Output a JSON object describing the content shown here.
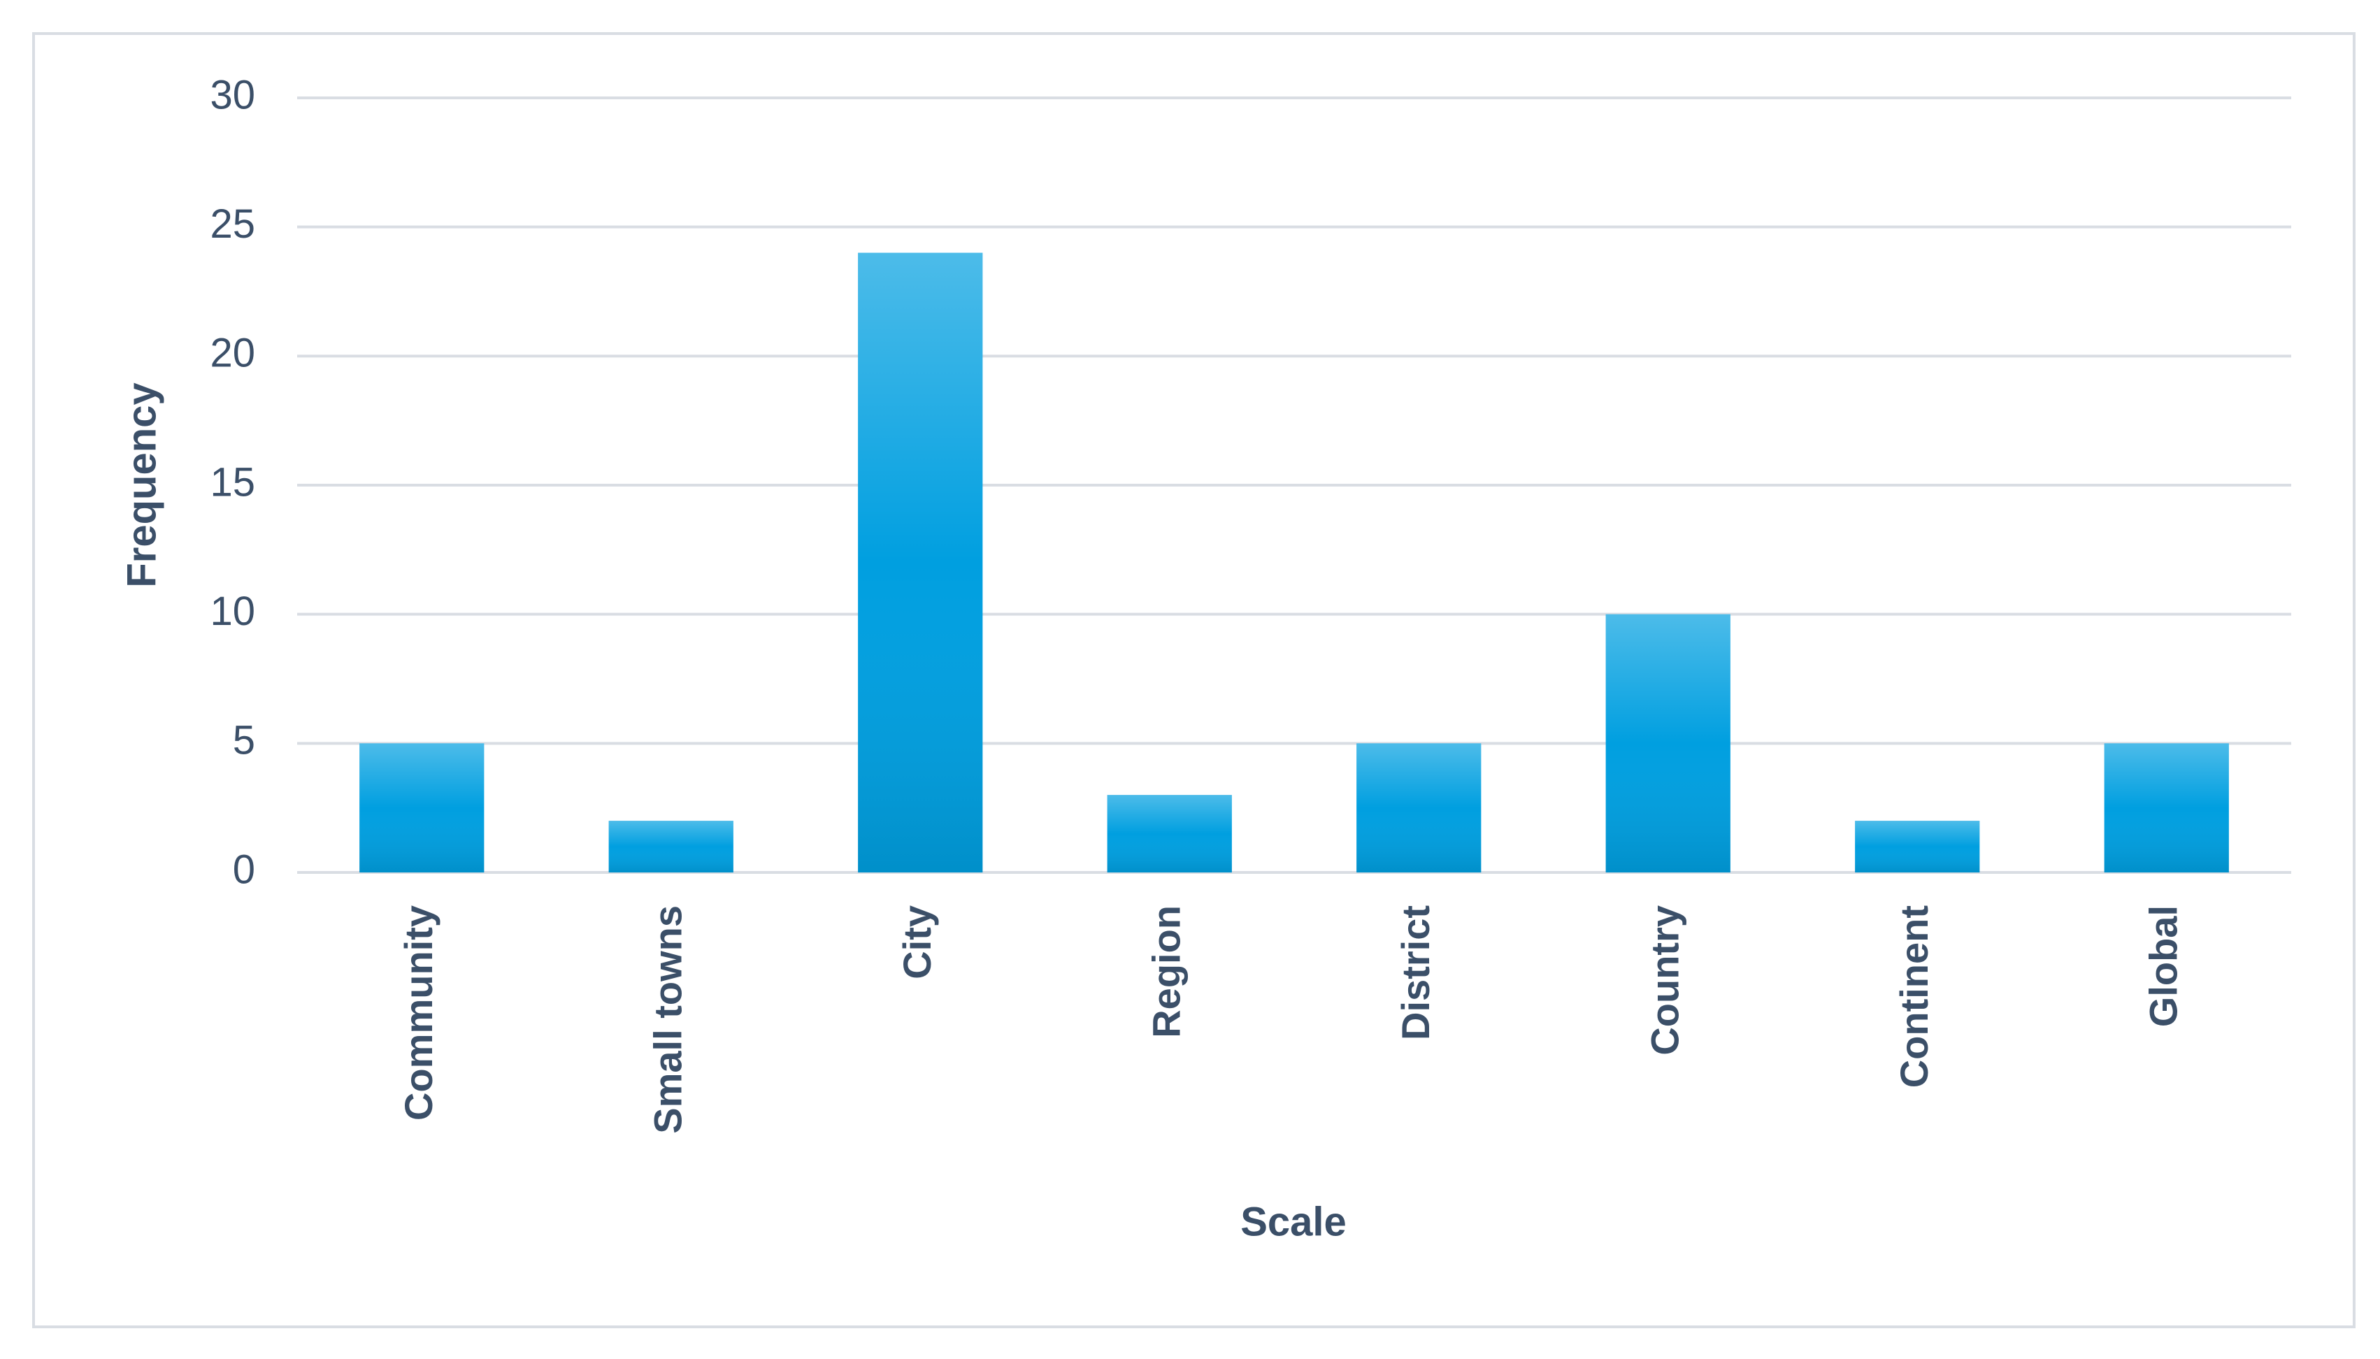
{
  "chart_data": {
    "type": "bar",
    "x_label": "Scale",
    "y_label": "Frequency",
    "categories": [
      "Community",
      "Small towns",
      "City",
      "Region",
      "District",
      "Country",
      "Continent",
      "Global"
    ],
    "values": [
      5,
      2,
      24,
      3,
      5,
      10,
      2,
      5
    ],
    "color": "#009fe0",
    "ylim": [
      0,
      30
    ],
    "yticks": [
      0,
      5,
      10,
      15,
      20,
      25,
      30
    ],
    "grid": true
  }
}
